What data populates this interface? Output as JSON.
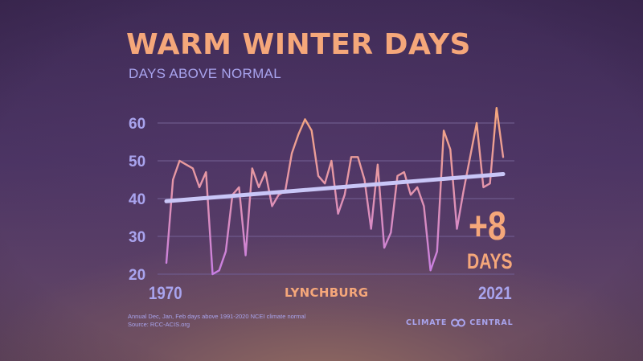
{
  "header": {
    "title": "WARM WINTER DAYS",
    "subtitle": "DAYS ABOVE NORMAL"
  },
  "colors": {
    "title": "#f5a77a",
    "accent_lavender": "#a9a4ee",
    "line_top": "#f5a77a",
    "line_bottom": "#c97be0",
    "trend": "#c9c6f7",
    "gridline": "#6e5a8c"
  },
  "chart_data": {
    "type": "line",
    "title": "WARM WINTER DAYS",
    "subtitle": "DAYS ABOVE NORMAL",
    "xlabel": "LYNCHBURG",
    "ylabel": "",
    "x_tick_labels": [
      "1970",
      "2021"
    ],
    "y_ticks": [
      20,
      30,
      40,
      50,
      60
    ],
    "ylim": [
      20,
      64
    ],
    "grid": true,
    "legend": "none",
    "x": [
      1970,
      1971,
      1972,
      1973,
      1974,
      1975,
      1976,
      1977,
      1978,
      1979,
      1980,
      1981,
      1982,
      1983,
      1984,
      1985,
      1986,
      1987,
      1988,
      1989,
      1990,
      1991,
      1992,
      1993,
      1994,
      1995,
      1996,
      1997,
      1998,
      1999,
      2000,
      2001,
      2002,
      2003,
      2004,
      2005,
      2006,
      2007,
      2008,
      2009,
      2010,
      2011,
      2012,
      2013,
      2014,
      2015,
      2016,
      2017,
      2018,
      2019,
      2020,
      2021
    ],
    "series": [
      {
        "name": "Warm winter days",
        "values": [
          23,
          45,
          50,
          49,
          48,
          43,
          47,
          20,
          21,
          26,
          41,
          43,
          25,
          48,
          43,
          47,
          38,
          41,
          42,
          52,
          57,
          61,
          58,
          46,
          44,
          50,
          36,
          41,
          51,
          51,
          45,
          32,
          49,
          27,
          31,
          46,
          47,
          41,
          43,
          38,
          21,
          26,
          58,
          53,
          32,
          42,
          51,
          60,
          43,
          44,
          64,
          51
        ]
      },
      {
        "name": "Trend",
        "values_at_endpoints": {
          "1970": 39.3,
          "2021": 46.5
        }
      }
    ],
    "annotations": [
      {
        "text": "+8",
        "subtext": "DAYS",
        "meaning": "trend change 1970-2021"
      }
    ]
  },
  "labels": {
    "x_start": "1970",
    "x_end": "2021",
    "city": "LYNCHBURG",
    "change_value": "+8",
    "change_unit": "DAYS"
  },
  "footer": {
    "note_line1": "Annual Dec, Jan, Feb days above 1991-2020 NCEI climate normal",
    "note_line2": "Source: RCC-ACIS.org",
    "logo_left": "CLIMATE",
    "logo_icon": "infinity-rings-icon",
    "logo_right": "CENTRAL"
  }
}
